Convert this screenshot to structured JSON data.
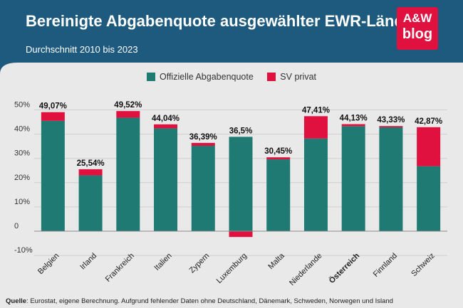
{
  "header": {
    "title": "Bereinigte Abgabenquote ausgewählter EWR-Länder",
    "subtitle": "Durchschnitt 2010 bis 2023",
    "bg_color": "#1e5a7e"
  },
  "logo": {
    "line1": "A&W",
    "line2": "blog",
    "color": "#e0103f"
  },
  "source": {
    "label": "Quelle",
    "text": ": Eurostat, eigene Berechnung. Aufgrund fehlender Daten ohne Deutschland, Dänemark, Schweden, Norwegen und Island"
  },
  "chart_data": {
    "type": "bar",
    "stacked": true,
    "categories": [
      "Belgien",
      "Irland",
      "Frankreich",
      "Italien",
      "Zypern",
      "Luxemburg",
      "Malta",
      "Niederlande",
      "Österreich",
      "Finnland",
      "Schweiz"
    ],
    "highlight_category": "Österreich",
    "series": [
      {
        "name": "Offizielle Abgabenquote",
        "color": "#1f7a73",
        "values": [
          45.5,
          23.0,
          46.8,
          42.4,
          35.2,
          38.9,
          29.6,
          38.2,
          43.3,
          42.8,
          26.8
        ]
      },
      {
        "name": "SV privat",
        "color": "#e0103f",
        "values": [
          3.57,
          2.54,
          2.72,
          1.64,
          1.19,
          -2.4,
          0.85,
          9.21,
          0.83,
          0.53,
          16.07
        ]
      }
    ],
    "total_labels": [
      "49,07%",
      "25,54%",
      "49,52%",
      "44,04%",
      "36,39%",
      "36,5%",
      "30,45%",
      "47,41%",
      "44,13%",
      "43,33%",
      "42,87%"
    ],
    "y_ticks": [
      50,
      40,
      30,
      20,
      10,
      0,
      -10
    ],
    "y_tick_labels": [
      "50%",
      "40%",
      "30%",
      "20%",
      "10%",
      "0",
      "-10%"
    ],
    "ylim": [
      -10,
      50
    ],
    "grid": true,
    "xlabel": "",
    "ylabel": ""
  }
}
